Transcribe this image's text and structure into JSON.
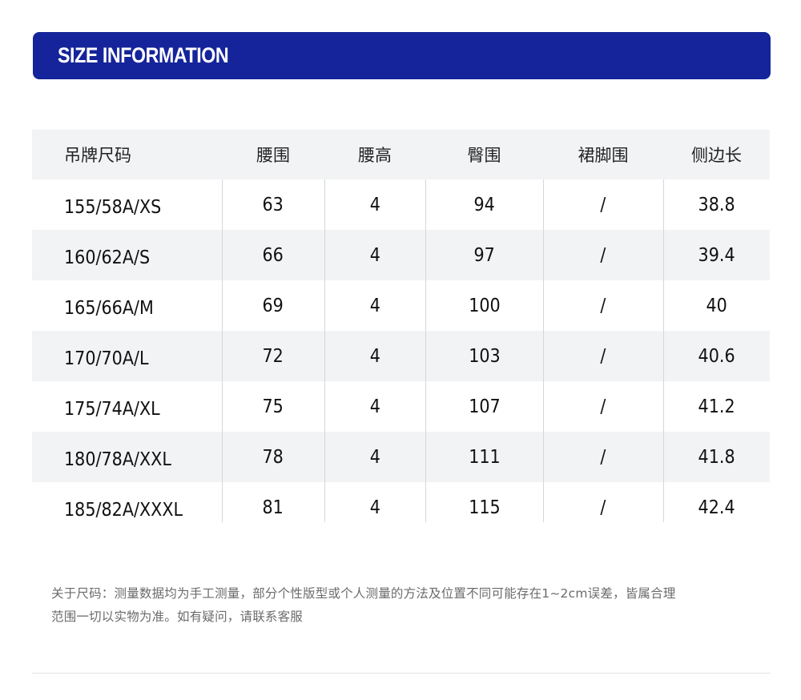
{
  "banner": {
    "title": "SIZE INFORMATION",
    "background_color": "#15249a"
  },
  "table": {
    "headers": [
      "吊牌尺码",
      "腰围",
      "腰高",
      "臀围",
      "裙脚围",
      "侧边长"
    ],
    "rows": [
      [
        "155/58A/XS",
        "63",
        "4",
        "94",
        "/",
        "38.8"
      ],
      [
        "160/62A/S",
        "66",
        "4",
        "97",
        "/",
        "39.4"
      ],
      [
        "165/66A/M",
        "69",
        "4",
        "100",
        "/",
        "40"
      ],
      [
        "170/70A/L",
        "72",
        "4",
        "103",
        "/",
        "40.6"
      ],
      [
        "175/74A/XL",
        "75",
        "4",
        "107",
        "/",
        "41.2"
      ],
      [
        "180/78A/XXL",
        "78",
        "4",
        "111",
        "/",
        "41.8"
      ],
      [
        "185/82A/XXXL",
        "81",
        "4",
        "115",
        "/",
        "42.4"
      ]
    ],
    "shaded_row_color": "#f2f3f5"
  },
  "note": {
    "line1": "关于尺码：测量数据均为手工测量，部分个性版型或个人测量的方法及位置不同可能存在1~2cm误差，皆属合理",
    "line2": "范围一切以实物为准。如有疑问，请联系客服"
  }
}
